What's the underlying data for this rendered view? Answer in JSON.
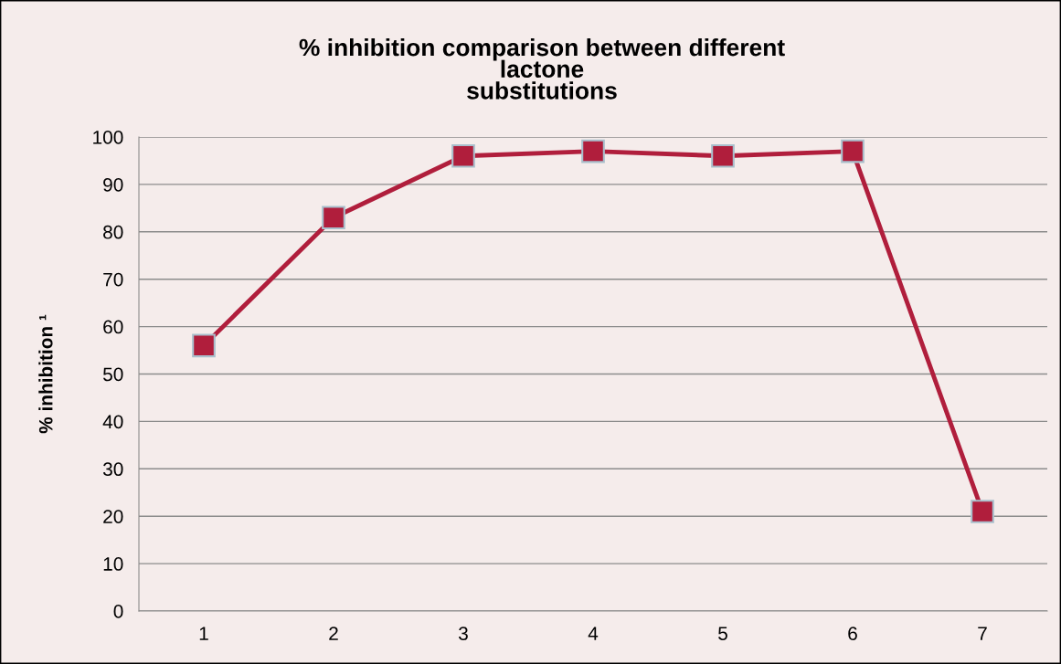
{
  "chart_data": {
    "type": "line",
    "title": "% inhibition comparison between different\nlactone\nsubstitutions",
    "ylabel": "% inhibition ¹",
    "categories": [
      "1",
      "2",
      "3",
      "4",
      "5",
      "6",
      "7"
    ],
    "series": [
      {
        "color": "#b01e3c",
        "values": [
          56,
          83,
          96,
          97,
          96,
          97,
          21
        ]
      }
    ],
    "ylim": [
      0,
      100
    ],
    "yticks": [
      0,
      10,
      20,
      30,
      40,
      50,
      60,
      70,
      80,
      90,
      100
    ],
    "grid": "y",
    "marker": "square",
    "line_style": "solid"
  }
}
